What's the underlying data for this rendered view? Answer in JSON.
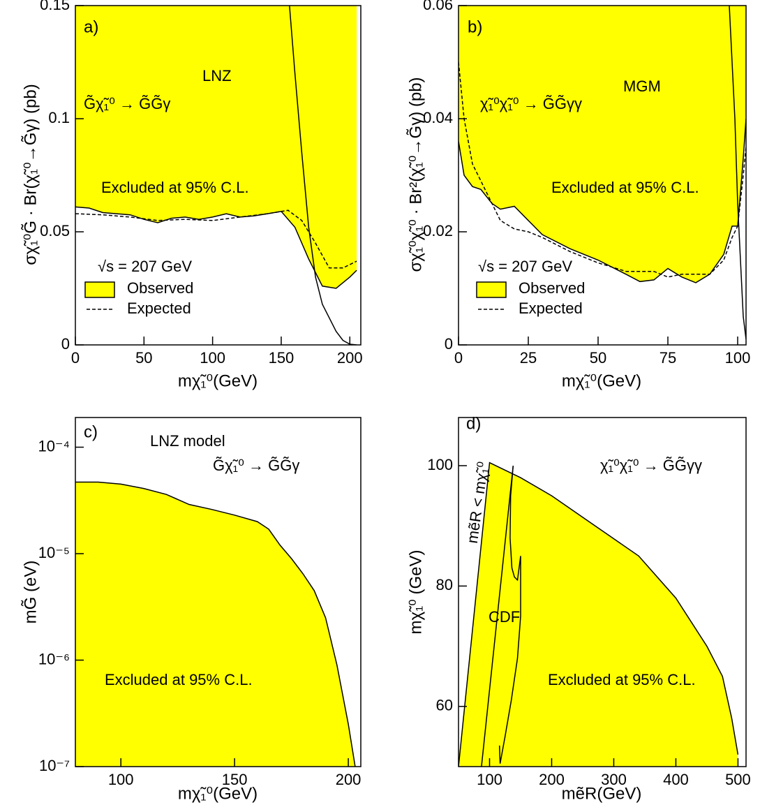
{
  "chart_data": [
    {
      "type": "line",
      "label": "a)",
      "x_label": "mχ̃₁⁰(GeV)",
      "y_label": "σχ̃₁⁰G̃ · Br(χ̃₁⁰→G̃γ)  (pb)",
      "annotations": [
        "LNZ",
        "G̃χ̃₁⁰ → G̃G̃γ",
        "Excluded at 95% C.L.",
        "√s = 207 GeV"
      ],
      "xlim": [
        0,
        208
      ],
      "xticks": [
        0,
        50,
        100,
        150,
        200
      ],
      "ylim": [
        0,
        0.15
      ],
      "yticks": [
        0,
        0.05,
        0.1,
        0.15
      ],
      "series": [
        {
          "name": "Observed",
          "color": "#ffff00",
          "fill": "above",
          "style": "solid",
          "x": [
            0,
            10,
            20,
            30,
            40,
            50,
            60,
            70,
            80,
            90,
            100,
            110,
            120,
            130,
            140,
            150,
            160,
            170,
            180,
            190,
            200,
            205
          ],
          "values": [
            0.061,
            0.0605,
            0.0585,
            0.058,
            0.0575,
            0.0555,
            0.054,
            0.056,
            0.0565,
            0.0555,
            0.0565,
            0.058,
            0.0565,
            0.057,
            0.058,
            0.059,
            0.052,
            0.038,
            0.026,
            0.025,
            0.03,
            0.033
          ]
        },
        {
          "name": "Expected",
          "color": "#000000",
          "style": "dashed",
          "x": [
            0,
            20,
            40,
            60,
            80,
            100,
            120,
            140,
            155,
            165,
            175,
            185,
            195,
            205
          ],
          "values": [
            0.058,
            0.0575,
            0.0565,
            0.055,
            0.0555,
            0.055,
            0.0565,
            0.058,
            0.0595,
            0.055,
            0.045,
            0.034,
            0.034,
            0.037
          ]
        },
        {
          "color": "#000000",
          "style": "solid",
          "x": [
            156,
            160,
            165,
            170,
            175,
            180,
            190,
            195,
            200,
            205
          ],
          "values": [
            0.15,
            0.12,
            0.085,
            0.052,
            0.03,
            0.018,
            0.006,
            0.002,
            0.0003,
            0
          ]
        }
      ]
    },
    {
      "type": "line",
      "label": "b)",
      "x_label": "mχ̃₁⁰(GeV)",
      "y_label": "σχ̃₁⁰χ̃₁⁰ · Br²(χ̃₁⁰→G̃γ)  (pb)",
      "annotations": [
        "MGM",
        "χ̃₁⁰χ̃₁⁰ → G̃G̃γγ",
        "Excluded at 95% C.L.",
        "√s = 207 GeV"
      ],
      "xlim": [
        0,
        103
      ],
      "xticks": [
        0,
        25,
        50,
        75,
        100
      ],
      "ylim": [
        0,
        0.06
      ],
      "yticks": [
        0,
        0.02,
        0.04,
        0.06
      ],
      "series": [
        {
          "name": "Observed",
          "color": "#ffff00",
          "fill": "above",
          "style": "solid",
          "x": [
            0,
            2,
            5,
            8,
            12,
            15,
            20,
            25,
            30,
            40,
            50,
            60,
            65,
            70,
            75,
            80,
            85,
            90,
            95,
            98,
            100,
            102,
            103
          ],
          "values": [
            0.036,
            0.03,
            0.028,
            0.0275,
            0.025,
            0.024,
            0.0245,
            0.022,
            0.0195,
            0.017,
            0.015,
            0.0125,
            0.0112,
            0.0115,
            0.0135,
            0.012,
            0.011,
            0.0125,
            0.016,
            0.021,
            0.021,
            0.033,
            0.04
          ]
        },
        {
          "name": "Expected",
          "color": "#000000",
          "style": "dashed",
          "x": [
            0,
            2,
            5,
            10,
            15,
            20,
            25,
            30,
            40,
            50,
            60,
            70,
            75,
            80,
            90,
            95,
            98,
            100,
            102,
            103
          ],
          "values": [
            0.05,
            0.04,
            0.032,
            0.027,
            0.022,
            0.0205,
            0.02,
            0.019,
            0.0165,
            0.0145,
            0.013,
            0.013,
            0.012,
            0.0125,
            0.0125,
            0.015,
            0.019,
            0.021,
            0.03,
            0.035
          ]
        },
        {
          "color": "#000000",
          "style": "solid",
          "x": [
            97,
            99,
            100,
            101,
            102,
            103
          ],
          "values": [
            0.06,
            0.04,
            0.025,
            0.015,
            0.005,
            0.001
          ]
        }
      ]
    },
    {
      "type": "line",
      "label": "c)",
      "x_label": "mχ̃₁⁰(GeV)",
      "y_label": "mG̃ (eV)",
      "annotations": [
        "LNZ model",
        "G̃χ̃₁⁰ → G̃G̃γ",
        "Excluded at 95% C.L."
      ],
      "xlim": [
        80,
        205.5
      ],
      "xticks": [
        100,
        150,
        200
      ],
      "ylim": [
        1e-07,
        0.00019
      ],
      "ylog": true,
      "yticks": [
        {
          "value": 1e-07,
          "label": "10⁻⁷"
        },
        {
          "value": 1e-06,
          "label": "10⁻⁶"
        },
        {
          "value": 1e-05,
          "label": "10⁻⁵"
        },
        {
          "value": 0.0001,
          "label": "10⁻⁴"
        }
      ],
      "series": [
        {
          "color": "#ffff00",
          "fill": "below",
          "style": "solid",
          "x": [
            80,
            90,
            100,
            110,
            120,
            130,
            140,
            150,
            160,
            165,
            170,
            175,
            180,
            185,
            190,
            195,
            200,
            203
          ],
          "values": [
            4.7e-05,
            4.7e-05,
            4.5e-05,
            4.1e-05,
            3.6e-05,
            2.9e-05,
            2.6e-05,
            2.3e-05,
            2e-05,
            1.7e-05,
            1.2e-05,
            9e-06,
            6.5e-06,
            4.5e-06,
            2.5e-06,
            9e-07,
            2.5e-07,
            1e-07
          ]
        }
      ]
    },
    {
      "type": "line",
      "label": "d)",
      "x_label": "mẽR(GeV)",
      "y_label": "mχ̃₁⁰ (GeV)",
      "annotations": [
        "χ̃₁⁰χ̃₁⁰ → G̃G̃γγ",
        "Excluded  at 95% C.L.",
        "CDF",
        "mẽR < mχ̃₁⁰"
      ],
      "xlim": [
        50,
        513
      ],
      "xticks": [
        100,
        200,
        300,
        400,
        500
      ],
      "ylim": [
        50,
        108
      ],
      "yticks": [
        60,
        80,
        100
      ],
      "series": [
        {
          "color": "#ffff00",
          "fill": "below",
          "style": "solid",
          "x": [
            50,
            100,
            150,
            200,
            270,
            340,
            400,
            450,
            475,
            490,
            500
          ],
          "values": [
            50,
            100.5,
            98,
            95,
            90,
            85,
            78,
            70,
            65,
            58,
            52
          ]
        },
        {
          "color": "#000000",
          "style": "solid",
          "x": [
            87,
            138
          ],
          "values": [
            50,
            100
          ]
        },
        {
          "color": "#000000",
          "style": "solid",
          "x": [
            116,
            117,
            125,
            135,
            145,
            150,
            150,
            145,
            140,
            136,
            133,
            134,
            138
          ],
          "values": [
            53.5,
            50.5,
            55,
            61,
            68,
            75,
            85,
            81,
            81.5,
            83,
            88,
            95,
            100
          ]
        }
      ]
    }
  ]
}
